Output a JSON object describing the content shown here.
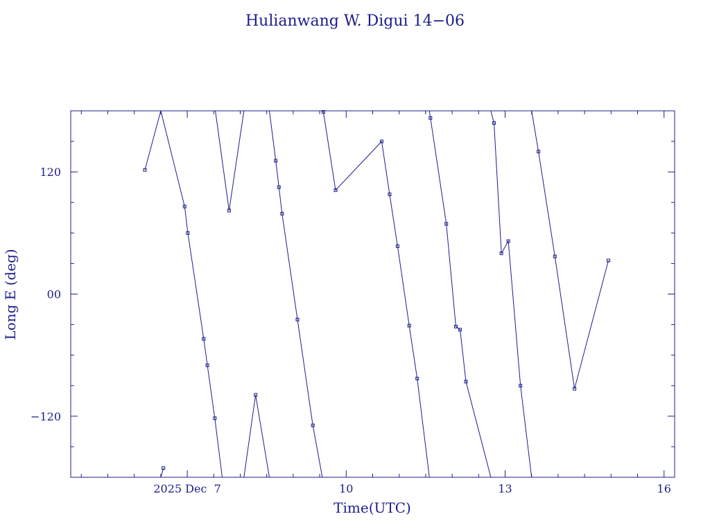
{
  "chart_data": {
    "type": "line",
    "title": "Hulianwang W. Digui 14−06",
    "xlabel": "Time(UTC)",
    "ylabel": "Long E (deg)",
    "x_unit": "days since 2025 Dec 0 UTC (axis labelled by day of month)",
    "xlim": [
      4.8,
      16.2
    ],
    "ylim": [
      -180,
      180
    ],
    "x_ticks": [
      {
        "value": 7,
        "label": "2025 Dec  7"
      },
      {
        "value": 10,
        "label": "10"
      },
      {
        "value": 13,
        "label": "13"
      },
      {
        "value": 16,
        "label": "16"
      }
    ],
    "y_ticks": [
      {
        "value": 120,
        "label": "120"
      },
      {
        "value": 0,
        "label": "00"
      },
      {
        "value": -120,
        "label": "−120"
      }
    ],
    "grid": false,
    "color": "#1c1c8c",
    "segments": [
      [
        [
          6.2,
          122
        ],
        [
          6.5,
          180
        ]
      ],
      [
        [
          6.5,
          -180
        ],
        [
          6.55,
          -171
        ]
      ],
      [
        [
          6.5,
          180
        ],
        [
          6.95,
          86
        ],
        [
          7.01,
          60
        ],
        [
          7.31,
          -44
        ],
        [
          7.38,
          -70
        ],
        [
          7.52,
          -122
        ],
        [
          7.66,
          -180
        ]
      ],
      [
        [
          7.53,
          180
        ],
        [
          7.79,
          82
        ],
        [
          8.07,
          180
        ]
      ],
      [
        [
          8.07,
          -180
        ],
        [
          8.29,
          -99
        ],
        [
          8.55,
          -180
        ]
      ],
      [
        [
          8.55,
          180
        ],
        [
          8.67,
          131
        ],
        [
          8.73,
          105
        ],
        [
          8.79,
          79
        ],
        [
          9.08,
          -25
        ],
        [
          9.37,
          -129
        ],
        [
          9.55,
          -180
        ]
      ],
      [
        [
          9.55,
          180
        ],
        [
          9.57,
          179
        ],
        [
          9.8,
          102
        ],
        [
          10.67,
          150
        ],
        [
          10.82,
          98
        ],
        [
          10.97,
          47
        ],
        [
          11.19,
          -31
        ],
        [
          11.34,
          -83
        ],
        [
          11.57,
          -180
        ]
      ],
      [
        [
          11.57,
          180
        ],
        [
          11.59,
          173
        ],
        [
          11.89,
          69
        ],
        [
          12.07,
          -32
        ],
        [
          12.15,
          -35
        ],
        [
          12.26,
          -86
        ],
        [
          12.73,
          -180
        ]
      ],
      [
        [
          12.73,
          180
        ],
        [
          12.79,
          168
        ],
        [
          12.93,
          40
        ],
        [
          13.06,
          52
        ],
        [
          13.29,
          -90
        ],
        [
          13.5,
          -180
        ]
      ],
      [
        [
          13.5,
          180
        ],
        [
          13.63,
          140
        ],
        [
          13.94,
          37
        ],
        [
          14.31,
          -93
        ],
        [
          14.95,
          33
        ]
      ]
    ],
    "points": [
      [
        6.2,
        122
      ],
      [
        6.55,
        -171
      ],
      [
        6.95,
        86
      ],
      [
        7.01,
        60
      ],
      [
        7.31,
        -44
      ],
      [
        7.38,
        -70
      ],
      [
        7.52,
        -122
      ],
      [
        7.79,
        82
      ],
      [
        8.29,
        -99
      ],
      [
        8.67,
        131
      ],
      [
        8.73,
        105
      ],
      [
        8.79,
        79
      ],
      [
        9.08,
        -25
      ],
      [
        9.37,
        -129
      ],
      [
        9.57,
        179
      ],
      [
        9.8,
        102
      ],
      [
        10.67,
        150
      ],
      [
        10.82,
        98
      ],
      [
        10.97,
        47
      ],
      [
        11.19,
        -31
      ],
      [
        11.34,
        -83
      ],
      [
        11.59,
        173
      ],
      [
        11.89,
        69
      ],
      [
        12.07,
        -32
      ],
      [
        12.15,
        -35
      ],
      [
        12.26,
        -86
      ],
      [
        12.79,
        168
      ],
      [
        12.93,
        40
      ],
      [
        13.06,
        52
      ],
      [
        13.29,
        -90
      ],
      [
        13.63,
        140
      ],
      [
        13.94,
        37
      ],
      [
        14.31,
        -93
      ],
      [
        14.95,
        33
      ]
    ]
  }
}
